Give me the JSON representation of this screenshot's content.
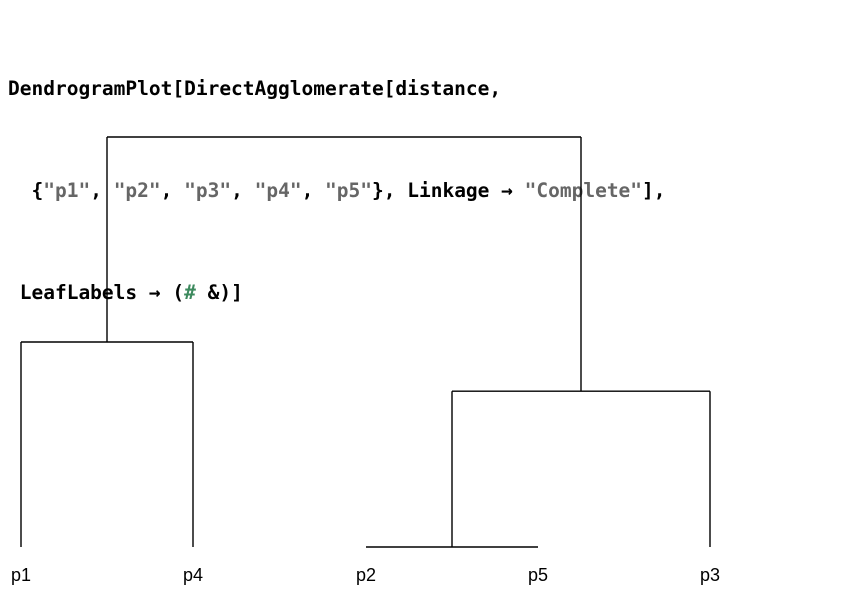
{
  "code": {
    "line1": [
      {
        "t": "DendrogramPlot[DirectAgglomerate[distance,",
        "c": "kw"
      }
    ],
    "line2": [
      {
        "t": "  {",
        "c": "kw"
      },
      {
        "t": "\"p1\"",
        "c": "str"
      },
      {
        "t": ", ",
        "c": "kw"
      },
      {
        "t": "\"p2\"",
        "c": "str"
      },
      {
        "t": ", ",
        "c": "kw"
      },
      {
        "t": "\"p3\"",
        "c": "str"
      },
      {
        "t": ", ",
        "c": "kw"
      },
      {
        "t": "\"p4\"",
        "c": "str"
      },
      {
        "t": ", ",
        "c": "kw"
      },
      {
        "t": "\"p5\"",
        "c": "str"
      },
      {
        "t": "}, Linkage → ",
        "c": "kw"
      },
      {
        "t": "\"Complete\"",
        "c": "str"
      },
      {
        "t": "],",
        "c": "kw"
      }
    ],
    "line3": [
      {
        "t": " LeafLabels → (",
        "c": "kw"
      },
      {
        "t": "#",
        "c": "slot"
      },
      {
        "t": " &)]",
        "c": "kw"
      }
    ]
  },
  "colors": {
    "code_text": "#000000",
    "string_literal": "#666666",
    "slot_symbol": "#3d8a5e",
    "dendrogram_line": "#000000"
  },
  "dendrogram": {
    "leaves": [
      "p1",
      "p4",
      "p2",
      "p5",
      "p3"
    ],
    "merges": [
      {
        "left": "p2",
        "right": "p5",
        "height": 0.0
      },
      {
        "left": "p1",
        "right": "p4",
        "height": 0.5
      },
      {
        "left": "p2+p5",
        "right": "p3",
        "height": 0.38
      },
      {
        "left": "p1+p4",
        "right": "p2+p5+p3",
        "height": 1.0
      }
    ]
  }
}
